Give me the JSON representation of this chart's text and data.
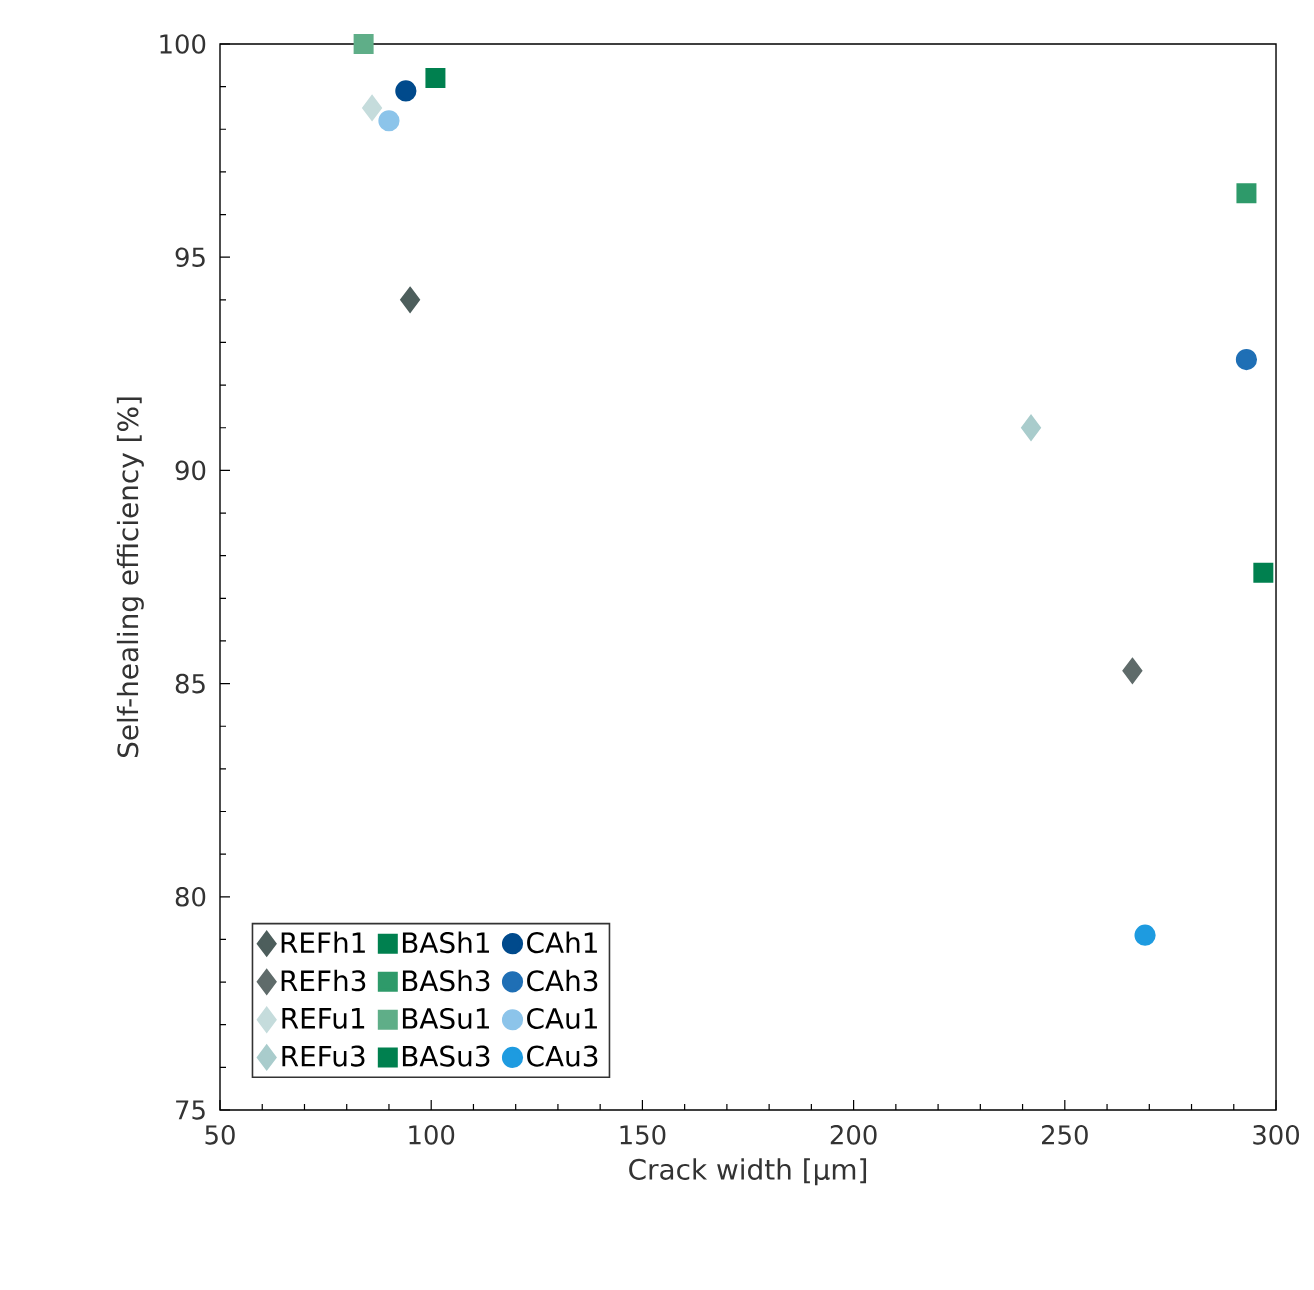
{
  "chart_data": {
    "type": "scatter",
    "xlabel": "Crack width [µm]",
    "ylabel": "Self-healing efficiency [%]",
    "xlim": [
      50,
      300
    ],
    "xticks": [
      50,
      100,
      150,
      200,
      250,
      300
    ],
    "ylim": [
      75,
      100
    ],
    "yticks": [
      75,
      80,
      85,
      90,
      95,
      100
    ],
    "grid": false,
    "legend": "bottom left",
    "series": [
      {
        "name": "REFh1",
        "marker": "diamond",
        "color": "#4d5e5c",
        "x": [
          95
        ],
        "values": [
          94
        ]
      },
      {
        "name": "BASh1",
        "marker": "square",
        "color": "#00804f",
        "x": [
          101
        ],
        "values": [
          99.2
        ]
      },
      {
        "name": "CAh1",
        "marker": "circle",
        "color": "#004a8c",
        "x": [
          94
        ],
        "values": [
          98.9
        ]
      },
      {
        "name": "REFh3",
        "marker": "diamond",
        "color": "#5f6b6a",
        "x": [
          266
        ],
        "values": [
          85.3
        ]
      },
      {
        "name": "BASh3",
        "marker": "square",
        "color": "#2e9a6a",
        "x": [
          293
        ],
        "values": [
          96.5
        ]
      },
      {
        "name": "CAh3",
        "marker": "circle",
        "color": "#1f6fb5",
        "x": [
          293
        ],
        "values": [
          92.6
        ]
      },
      {
        "name": "REFu1",
        "marker": "diamond",
        "color": "#c5dcdc",
        "x": [
          86
        ],
        "values": [
          98.5
        ]
      },
      {
        "name": "BASu1",
        "marker": "square",
        "color": "#5fae88",
        "x": [
          84
        ],
        "values": [
          100
        ]
      },
      {
        "name": "CAu1",
        "marker": "circle",
        "color": "#8cc4ea",
        "x": [
          90
        ],
        "values": [
          98.2
        ]
      },
      {
        "name": "REFu3",
        "marker": "diamond",
        "color": "#a9cccc",
        "x": [
          242
        ],
        "values": [
          91
        ]
      },
      {
        "name": "BASu3",
        "marker": "square",
        "color": "#00804f",
        "x": [
          297
        ],
        "values": [
          87.6
        ]
      },
      {
        "name": "CAu3",
        "marker": "circle",
        "color": "#1e9be0",
        "x": [
          269
        ],
        "values": [
          79.1
        ]
      }
    ]
  }
}
